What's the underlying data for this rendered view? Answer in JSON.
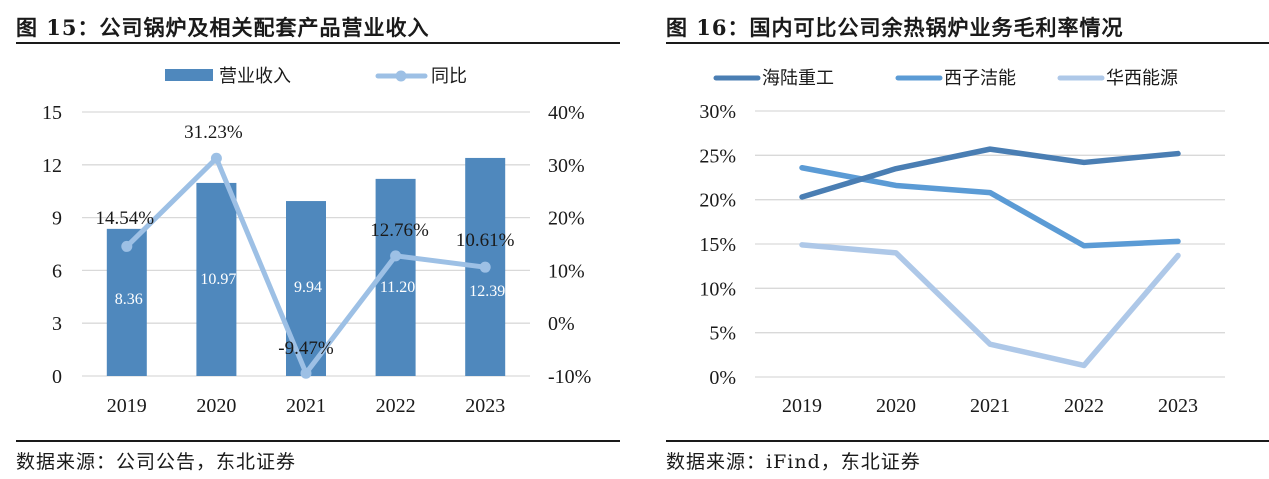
{
  "left": {
    "title": "图 15：公司锅炉及相关配套产品营业收入",
    "source": "数据来源：公司公告，东北证券"
  },
  "right": {
    "title": "图 16：国内可比公司余热锅炉业务毛利率情况",
    "source": "数据来源：iFind，东北证券"
  },
  "colors": {
    "bar": "#4F88BD",
    "yoy_line": "#9DC0E5",
    "hailu": "#4A7EB3",
    "xizi": "#5B9BD5",
    "huaxi": "#AEC8E8",
    "grid": "#D9D9D9"
  },
  "chart_data": [
    {
      "type": "bar",
      "title": "图 15：公司锅炉及相关配套产品营业收入",
      "categories": [
        "2019",
        "2020",
        "2021",
        "2022",
        "2023"
      ],
      "series": [
        {
          "name": "营业收入",
          "kind": "bar",
          "axis": "left",
          "values": [
            8.36,
            10.97,
            9.94,
            11.2,
            12.39
          ],
          "labels": [
            "8.36",
            "10.97",
            "9.94",
            "11.20",
            "12.39"
          ]
        },
        {
          "name": "同比",
          "kind": "line",
          "axis": "right",
          "values": [
            14.54,
            31.23,
            -9.47,
            12.76,
            10.61
          ],
          "labels": [
            "14.54%",
            "31.23%",
            "-9.47%",
            "12.76%",
            "10.61%"
          ]
        }
      ],
      "ylim": [
        0,
        15
      ],
      "yticks": [
        "0",
        "3",
        "6",
        "9",
        "12",
        "15"
      ],
      "ytick_values": [
        0,
        3,
        6,
        9,
        12,
        15
      ],
      "y2lim": [
        -10,
        40
      ],
      "y2ticks": [
        "-10%",
        "0%",
        "10%",
        "20%",
        "30%",
        "40%"
      ],
      "y2tick_values": [
        -10,
        0,
        10,
        20,
        30,
        40
      ],
      "legend": "top",
      "grid": true
    },
    {
      "type": "line",
      "title": "图 16：国内可比公司余热锅炉业务毛利率情况",
      "categories": [
        "2019",
        "2020",
        "2021",
        "2022",
        "2023"
      ],
      "series": [
        {
          "name": "海陆重工",
          "values": [
            20.3,
            23.5,
            25.7,
            24.2,
            25.2
          ]
        },
        {
          "name": "西子洁能",
          "values": [
            23.6,
            21.6,
            20.8,
            14.8,
            15.3
          ]
        },
        {
          "name": "华西能源",
          "values": [
            14.9,
            14.0,
            3.7,
            1.3,
            13.7
          ]
        }
      ],
      "ylim": [
        0,
        30
      ],
      "yticks": [
        "0%",
        "5%",
        "10%",
        "15%",
        "20%",
        "25%",
        "30%"
      ],
      "ytick_values": [
        0,
        5,
        10,
        15,
        20,
        25,
        30
      ],
      "legend": "top",
      "grid": true
    }
  ]
}
